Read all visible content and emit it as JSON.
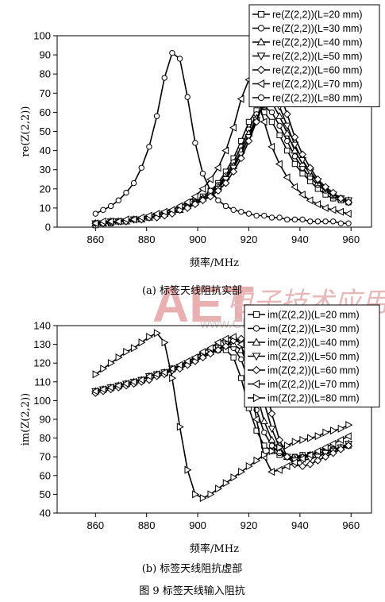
{
  "watermark": {
    "logo": "AET",
    "chinese": "电子技术应用",
    "url": "www.ChinaAET.com",
    "color": "#e8b0b0"
  },
  "figure_caption": "图 9   标签天线输入阻抗",
  "chart_data": [
    {
      "type": "line",
      "panel_caption": "(a) 标签天线阻抗实部",
      "xlabel": "频率/MHz",
      "ylabel": "re(Z(2,2))",
      "xlim": [
        845,
        968
      ],
      "ylim": [
        0,
        100
      ],
      "xticks": [
        860,
        880,
        900,
        920,
        940,
        960
      ],
      "yticks": [
        0,
        10,
        20,
        30,
        40,
        50,
        60,
        70,
        80,
        90,
        100
      ],
      "legend_position": "top-right",
      "series": [
        {
          "name": "re(Z(2,2))(L=20 mm)",
          "marker": "square",
          "x": [
            860,
            863,
            866,
            869,
            872,
            875,
            878,
            881,
            884,
            887,
            890,
            893,
            896,
            899,
            902,
            905,
            908,
            911,
            914,
            917,
            920,
            923,
            926,
            929,
            932,
            935,
            938,
            941,
            944,
            947,
            950,
            953,
            956,
            959
          ],
          "y": [
            1,
            2,
            2,
            3,
            3,
            4,
            4,
            5,
            6,
            7,
            8,
            9,
            11,
            13,
            16,
            19,
            23,
            29,
            36,
            45,
            55,
            61,
            60,
            55,
            48,
            40,
            33,
            28,
            24,
            20,
            17,
            15,
            14,
            13
          ]
        },
        {
          "name": "re(Z(2,2))(L=30 mm)",
          "marker": "circle",
          "x": [
            860,
            863,
            866,
            869,
            872,
            875,
            878,
            881,
            884,
            887,
            890,
            893,
            896,
            899,
            902,
            905,
            908,
            911,
            914,
            917,
            920,
            923,
            926,
            929,
            932,
            935,
            938,
            941,
            944,
            947,
            950,
            953,
            956,
            959
          ],
          "y": [
            2,
            2,
            2,
            3,
            3,
            4,
            4,
            5,
            6,
            7,
            8,
            9,
            11,
            13,
            15,
            18,
            22,
            27,
            34,
            42,
            51,
            59,
            63,
            60,
            53,
            45,
            37,
            31,
            26,
            22,
            19,
            16,
            15,
            13
          ]
        },
        {
          "name": "re(Z(2,2))(L=40 mm)",
          "marker": "triangle-up",
          "x": [
            860,
            863,
            866,
            869,
            872,
            875,
            878,
            881,
            884,
            887,
            890,
            893,
            896,
            899,
            902,
            905,
            908,
            911,
            914,
            917,
            920,
            923,
            926,
            929,
            932,
            935,
            938,
            941,
            944,
            947,
            950,
            953,
            956,
            959
          ],
          "y": [
            2,
            2,
            3,
            3,
            3,
            4,
            4,
            5,
            6,
            7,
            8,
            9,
            11,
            13,
            15,
            18,
            21,
            26,
            32,
            40,
            49,
            57,
            64,
            65,
            58,
            49,
            40,
            33,
            28,
            23,
            20,
            17,
            15,
            14
          ]
        },
        {
          "name": "re(Z(2,2))(L=50 mm)",
          "marker": "triangle-down",
          "x": [
            860,
            863,
            866,
            869,
            872,
            875,
            878,
            881,
            884,
            887,
            890,
            893,
            896,
            899,
            902,
            905,
            908,
            911,
            914,
            917,
            920,
            923,
            926,
            929,
            932,
            935,
            938,
            941,
            944,
            947,
            950,
            953,
            956,
            959
          ],
          "y": [
            2,
            2,
            3,
            3,
            3,
            4,
            4,
            5,
            6,
            7,
            8,
            9,
            10,
            12,
            14,
            17,
            20,
            25,
            31,
            38,
            47,
            56,
            64,
            68,
            63,
            53,
            43,
            35,
            29,
            24,
            20,
            17,
            15,
            14
          ]
        },
        {
          "name": "re(Z(2,2))(L=60 mm)",
          "marker": "diamond",
          "x": [
            860,
            863,
            866,
            869,
            872,
            875,
            878,
            881,
            884,
            887,
            890,
            893,
            896,
            899,
            902,
            905,
            908,
            911,
            914,
            917,
            920,
            923,
            926,
            929,
            932,
            935,
            938,
            941,
            944,
            947,
            950,
            953,
            956,
            959
          ],
          "y": [
            2,
            2,
            3,
            3,
            3,
            4,
            4,
            5,
            5,
            6,
            7,
            9,
            10,
            12,
            14,
            16,
            19,
            23,
            29,
            36,
            45,
            55,
            66,
            73,
            70,
            59,
            47,
            38,
            31,
            25,
            21,
            18,
            15,
            13
          ]
        },
        {
          "name": "re(Z(2,2))(L=70 mm)",
          "marker": "triangle-left",
          "x": [
            860,
            863,
            866,
            869,
            872,
            875,
            878,
            881,
            884,
            887,
            890,
            893,
            896,
            899,
            902,
            905,
            908,
            911,
            914,
            917,
            920,
            923,
            926,
            929,
            932,
            935,
            938,
            941,
            944,
            947,
            950,
            953,
            956,
            959
          ],
          "y": [
            2,
            3,
            3,
            3,
            4,
            4,
            5,
            6,
            7,
            8,
            9,
            11,
            13,
            16,
            20,
            25,
            31,
            40,
            52,
            67,
            77,
            70,
            55,
            42,
            33,
            26,
            21,
            17,
            14,
            12,
            10,
            9,
            8,
            7
          ]
        },
        {
          "name": "re(Z(2,2))(L=80 mm)",
          "marker": "circle",
          "x": [
            860,
            863,
            866,
            869,
            872,
            875,
            878,
            881,
            884,
            887,
            890,
            893,
            896,
            899,
            902,
            905,
            908,
            911,
            914,
            917,
            920,
            923,
            926,
            929,
            932,
            935,
            938,
            941,
            944,
            947,
            950,
            953,
            956,
            959
          ],
          "y": [
            7,
            9,
            11,
            14,
            18,
            23,
            31,
            42,
            58,
            78,
            91,
            88,
            68,
            44,
            28,
            19,
            14,
            11,
            9,
            8,
            7,
            6,
            6,
            5,
            5,
            4,
            4,
            4,
            3,
            3,
            3,
            3,
            2,
            2
          ]
        }
      ]
    },
    {
      "type": "line",
      "panel_caption": "(b) 标签天线阻抗虚部",
      "xlabel": "频率/MHz",
      "ylabel": "im(Z(2,2))",
      "xlim": [
        845,
        968
      ],
      "ylim": [
        40,
        140
      ],
      "xticks": [
        860,
        880,
        900,
        920,
        940,
        960
      ],
      "yticks": [
        40,
        50,
        60,
        70,
        80,
        90,
        100,
        110,
        120,
        130,
        140
      ],
      "legend_position": "top-right",
      "series": [
        {
          "name": "im(Z(2,2))(L=20 mm)",
          "marker": "square",
          "x": [
            860,
            863,
            866,
            869,
            872,
            875,
            878,
            881,
            884,
            887,
            890,
            893,
            896,
            899,
            902,
            905,
            908,
            911,
            914,
            917,
            920,
            923,
            926,
            929,
            932,
            935,
            938,
            941,
            944,
            947,
            950,
            953,
            956,
            959
          ],
          "y": [
            105,
            106,
            107,
            108,
            109,
            110,
            111,
            113,
            114,
            115,
            117,
            118,
            120,
            122,
            124,
            126,
            127,
            127,
            123,
            112,
            96,
            84,
            76,
            73,
            71,
            70,
            70,
            71,
            71,
            72,
            73,
            74,
            75,
            76
          ]
        },
        {
          "name": "im(Z(2,2))(L=30 mm)",
          "marker": "circle",
          "x": [
            860,
            863,
            866,
            869,
            872,
            875,
            878,
            881,
            884,
            887,
            890,
            893,
            896,
            899,
            902,
            905,
            908,
            911,
            914,
            917,
            920,
            923,
            926,
            929,
            932,
            935,
            938,
            941,
            944,
            947,
            950,
            953,
            956,
            959
          ],
          "y": [
            105,
            106,
            107,
            108,
            109,
            110,
            111,
            113,
            114,
            115,
            117,
            118,
            120,
            122,
            124,
            126,
            128,
            129,
            128,
            122,
            110,
            95,
            83,
            76,
            72,
            70,
            70,
            70,
            71,
            72,
            73,
            74,
            75,
            76
          ]
        },
        {
          "name": "im(Z(2,2))(L=40 mm)",
          "marker": "triangle-up",
          "x": [
            860,
            863,
            866,
            869,
            872,
            875,
            878,
            881,
            884,
            887,
            890,
            893,
            896,
            899,
            902,
            905,
            908,
            911,
            914,
            917,
            920,
            923,
            926,
            929,
            932,
            935,
            938,
            941,
            944,
            947,
            950,
            953,
            956,
            959
          ],
          "y": [
            105,
            106,
            107,
            108,
            109,
            110,
            111,
            113,
            114,
            115,
            117,
            118,
            120,
            122,
            124,
            126,
            128,
            130,
            130,
            127,
            118,
            104,
            89,
            79,
            73,
            70,
            69,
            70,
            71,
            72,
            73,
            74,
            75,
            77
          ]
        },
        {
          "name": "im(Z(2,2))(L=50 mm)",
          "marker": "triangle-down",
          "x": [
            860,
            863,
            866,
            869,
            872,
            875,
            878,
            881,
            884,
            887,
            890,
            893,
            896,
            899,
            902,
            905,
            908,
            911,
            914,
            917,
            920,
            923,
            926,
            929,
            932,
            935,
            938,
            941,
            944,
            947,
            950,
            953,
            956,
            959
          ],
          "y": [
            105,
            106,
            107,
            108,
            109,
            110,
            111,
            113,
            114,
            115,
            117,
            118,
            120,
            122,
            124,
            126,
            128,
            130,
            132,
            131,
            126,
            115,
            99,
            85,
            75,
            70,
            68,
            68,
            69,
            70,
            72,
            73,
            75,
            77
          ]
        },
        {
          "name": "im(Z(2,2))(L=60 mm)",
          "marker": "diamond",
          "x": [
            860,
            863,
            866,
            869,
            872,
            875,
            878,
            881,
            884,
            887,
            890,
            893,
            896,
            899,
            902,
            905,
            908,
            911,
            914,
            917,
            920,
            923,
            926,
            929,
            932,
            935,
            938,
            941,
            944,
            947,
            950,
            953,
            956,
            959
          ],
          "y": [
            104,
            105,
            106,
            107,
            108,
            109,
            110,
            111,
            113,
            114,
            116,
            117,
            119,
            121,
            123,
            125,
            127,
            129,
            132,
            133,
            131,
            124,
            110,
            93,
            79,
            70,
            66,
            65,
            66,
            68,
            70,
            72,
            74,
            76
          ]
        },
        {
          "name": "im(Z(2,2))(L=70 mm)",
          "marker": "triangle-left",
          "x": [
            860,
            863,
            866,
            869,
            872,
            875,
            878,
            881,
            884,
            887,
            890,
            893,
            896,
            899,
            902,
            905,
            908,
            911,
            914,
            917,
            920,
            923,
            926,
            929,
            932,
            935,
            938,
            941,
            944,
            947,
            950,
            953,
            956,
            959
          ],
          "y": [
            105,
            106,
            107,
            108,
            109,
            110,
            111,
            113,
            114,
            115,
            117,
            119,
            121,
            123,
            126,
            128,
            131,
            133,
            134,
            130,
            114,
            90,
            70,
            62,
            63,
            65,
            67,
            69,
            71,
            73,
            75,
            77,
            79,
            81
          ]
        },
        {
          "name": "im(Z(2,2))(L=80 mm)",
          "marker": "triangle-right",
          "x": [
            860,
            863,
            866,
            869,
            872,
            875,
            878,
            881,
            884,
            887,
            890,
            893,
            896,
            899,
            902,
            905,
            908,
            911,
            914,
            917,
            920,
            923,
            926,
            929,
            932,
            935,
            938,
            941,
            944,
            947,
            950,
            953,
            956,
            959
          ],
          "y": [
            114,
            117,
            120,
            123,
            126,
            128,
            131,
            134,
            136,
            131,
            112,
            86,
            63,
            50,
            48,
            50,
            53,
            56,
            59,
            62,
            65,
            68,
            71,
            73,
            75,
            76,
            78,
            79,
            80,
            81,
            83,
            84,
            85,
            87
          ]
        }
      ]
    }
  ]
}
